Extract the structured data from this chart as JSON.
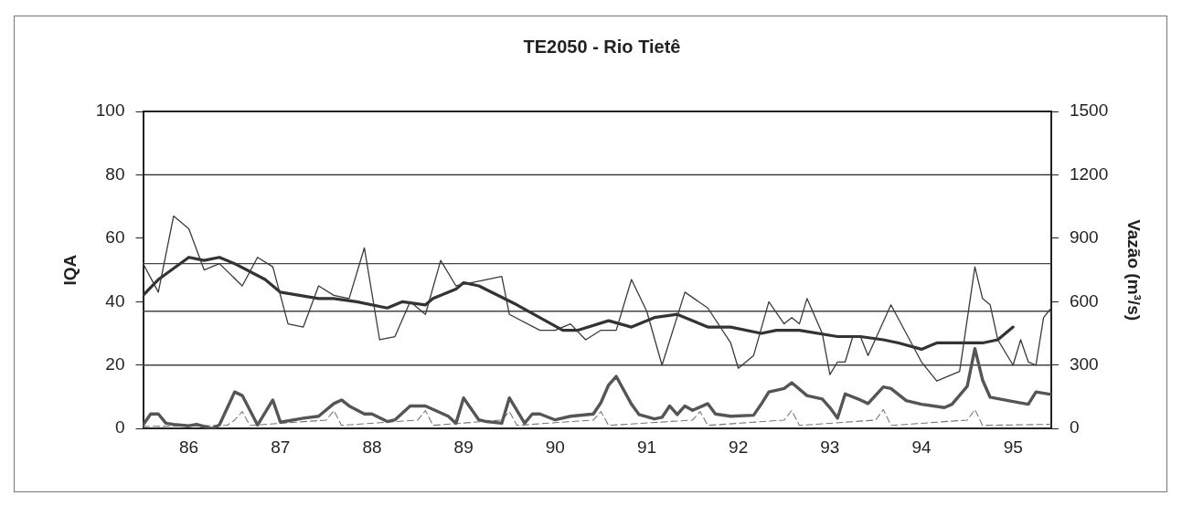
{
  "chart_data": {
    "type": "line",
    "title": "TE2050 - Rio Tietê",
    "ylabel": "IQA",
    "y2label": "Vazão (m³/s)",
    "xlim": [
      "1986-01",
      "1995-12"
    ],
    "xticks": [
      {
        "value": "1986-07",
        "label": "86"
      },
      {
        "value": "1987-07",
        "label": "87"
      },
      {
        "value": "1988-07",
        "label": "88"
      },
      {
        "value": "1989-07",
        "label": "89"
      },
      {
        "value": "1990-07",
        "label": "90"
      },
      {
        "value": "1991-07",
        "label": "91"
      },
      {
        "value": "1992-07",
        "label": "92"
      },
      {
        "value": "1993-07",
        "label": "93"
      },
      {
        "value": "1994-07",
        "label": "94"
      },
      {
        "value": "1995-07",
        "label": "95"
      }
    ],
    "ylim": [
      0,
      100
    ],
    "yticks": [
      0,
      20,
      40,
      60,
      80,
      100
    ],
    "y2lim": [
      0,
      1500
    ],
    "y2ticks": [
      0,
      300,
      600,
      900,
      1200,
      1500
    ],
    "marker": "none",
    "legend": false,
    "ref_lines": [
      {
        "axis": "y",
        "value": 80,
        "color": "#222222"
      },
      {
        "axis": "y",
        "value": 52,
        "color": "#444444"
      },
      {
        "axis": "y",
        "value": 37,
        "color": "#444444"
      },
      {
        "axis": "y",
        "value": 20,
        "color": "#444444"
      }
    ],
    "series": [
      {
        "color": "#3a3a3a",
        "line_style": "solid",
        "x": [
          "1986-01",
          "1986-03",
          "1986-05",
          "1986-07",
          "1986-09",
          "1986-11",
          "1987-02",
          "1987-04",
          "1987-06",
          "1987-08",
          "1987-10",
          "1987-12",
          "1988-02",
          "1988-04",
          "1988-06",
          "1988-08",
          "1988-10",
          "1988-12",
          "1989-02",
          "1989-04",
          "1989-06",
          "1989-10",
          "1989-12",
          "1990-01",
          "1990-05",
          "1990-07",
          "1990-09",
          "1990-11",
          "1991-01",
          "1991-03",
          "1991-05",
          "1991-07",
          "1991-09",
          "1991-12",
          "1992-03",
          "1992-06",
          "1992-07",
          "1992-09",
          "1992-11",
          "1993-01",
          "1993-02",
          "1993-03",
          "1993-04",
          "1993-06",
          "1993-07",
          "1993-08",
          "1993-09",
          "1993-10",
          "1993-11",
          "1993-12",
          "1994-03",
          "1994-05",
          "1994-07",
          "1994-09",
          "1994-11",
          "1994-12",
          "1995-02",
          "1995-03",
          "1995-04",
          "1995-05",
          "1995-07",
          "1995-08",
          "1995-09",
          "1995-10",
          "1995-11",
          "1995-12"
        ],
        "values": [
          52,
          43,
          67,
          63,
          50,
          52,
          45,
          54,
          51,
          33,
          32,
          45,
          42,
          41,
          57,
          28,
          29,
          40,
          36,
          53,
          45,
          47,
          48,
          36,
          31,
          31,
          33,
          28,
          31,
          31,
          47,
          37,
          20,
          43,
          38,
          27,
          19,
          23,
          40,
          33,
          35,
          33,
          41,
          30,
          17,
          21,
          21,
          29,
          29,
          23,
          39,
          30,
          21,
          15,
          17,
          18,
          51,
          41,
          39,
          28,
          20,
          28,
          21,
          20,
          35,
          38
        ]
      },
      {
        "color": "#333333",
        "line_style": "solid",
        "x": [
          "1986-01",
          "1986-03",
          "1986-07",
          "1986-09",
          "1986-11",
          "1987-01",
          "1987-05",
          "1987-07",
          "1987-12",
          "1988-02",
          "1988-05",
          "1988-09",
          "1988-11",
          "1989-02",
          "1989-03",
          "1989-06",
          "1989-07",
          "1989-09",
          "1990-02",
          "1990-08",
          "1990-10",
          "1991-02",
          "1991-05",
          "1991-08",
          "1991-11",
          "1992-03",
          "1992-06",
          "1992-10",
          "1992-12",
          "1993-03",
          "1993-08",
          "1993-11",
          "1994-02",
          "1994-04",
          "1994-07",
          "1994-09",
          "1995-01",
          "1995-03",
          "1995-05",
          "1995-07"
        ],
        "values": [
          42,
          47,
          54,
          53,
          54,
          52,
          47,
          43,
          41,
          41,
          40,
          38,
          40,
          39,
          41,
          44,
          46,
          45,
          39,
          31,
          31,
          34,
          32,
          35,
          36,
          32,
          32,
          30,
          31,
          31,
          29,
          29,
          28,
          27,
          25,
          27,
          27,
          27,
          28,
          32
        ]
      },
      {
        "color": "#555555",
        "line_style": "solid",
        "axis": "y2",
        "x": [
          "1986-01",
          "1986-02",
          "1986-03",
          "1986-04",
          "1986-05",
          "1986-07",
          "1986-08",
          "1986-10",
          "1986-11",
          "1987-01",
          "1987-02",
          "1987-04",
          "1987-06",
          "1987-07",
          "1987-10",
          "1987-12",
          "1988-02",
          "1988-03",
          "1988-04",
          "1988-06",
          "1988-07",
          "1988-09",
          "1988-10",
          "1988-12",
          "1989-02",
          "1989-05",
          "1989-06",
          "1989-07",
          "1989-09",
          "1989-10",
          "1989-12",
          "1990-01",
          "1990-03",
          "1990-04",
          "1990-05",
          "1990-07",
          "1990-09",
          "1990-12",
          "1991-01",
          "1991-02",
          "1991-03",
          "1991-05",
          "1991-06",
          "1991-08",
          "1991-09",
          "1991-10",
          "1991-11",
          "1991-12",
          "1992-01",
          "1992-03",
          "1992-04",
          "1992-06",
          "1992-09",
          "1992-10",
          "1992-11",
          "1993-01",
          "1993-02",
          "1993-04",
          "1993-06",
          "1993-07",
          "1993-08",
          "1993-09",
          "1993-11",
          "1993-12",
          "1994-02",
          "1994-03",
          "1994-05",
          "1994-07",
          "1994-10",
          "1994-11",
          "1995-01",
          "1995-02",
          "1995-03",
          "1995-04",
          "1995-07",
          "1995-09",
          "1995-10",
          "1995-12"
        ],
        "values": [
          17,
          69,
          69,
          25,
          20,
          13,
          20,
          0,
          17,
          173,
          156,
          17,
          135,
          30,
          49,
          58,
          118,
          135,
          107,
          69,
          69,
          33,
          41,
          107,
          107,
          58,
          25,
          145,
          41,
          33,
          25,
          145,
          25,
          69,
          69,
          41,
          58,
          69,
          123,
          206,
          247,
          115,
          66,
          46,
          53,
          107,
          66,
          107,
          86,
          118,
          69,
          58,
          63,
          115,
          173,
          189,
          217,
          156,
          140,
          99,
          49,
          164,
          135,
          118,
          197,
          189,
          132,
          115,
          99,
          115,
          200,
          378,
          230,
          148,
          128,
          115,
          173,
          161
        ]
      },
      {
        "color": "#777777",
        "line_style": "dashed",
        "axis": "y2",
        "x": [
          "1986-01",
          "1986-12",
          "1987-01",
          "1987-02",
          "1987-03",
          "1988-01",
          "1988-02",
          "1988-03",
          "1989-01",
          "1989-02",
          "1989-03",
          "1989-12",
          "1990-01",
          "1990-02",
          "1990-12",
          "1991-01",
          "1991-02",
          "1992-01",
          "1992-02",
          "1992-03",
          "1993-01",
          "1993-02",
          "1993-03",
          "1994-01",
          "1994-02",
          "1994-03",
          "1995-01",
          "1995-02",
          "1995-03",
          "1995-12"
        ],
        "values": [
          10,
          15,
          40,
          80,
          15,
          40,
          85,
          15,
          40,
          85,
          15,
          40,
          80,
          15,
          40,
          80,
          15,
          40,
          80,
          15,
          40,
          85,
          15,
          40,
          90,
          15,
          40,
          90,
          15,
          20
        ]
      }
    ]
  }
}
